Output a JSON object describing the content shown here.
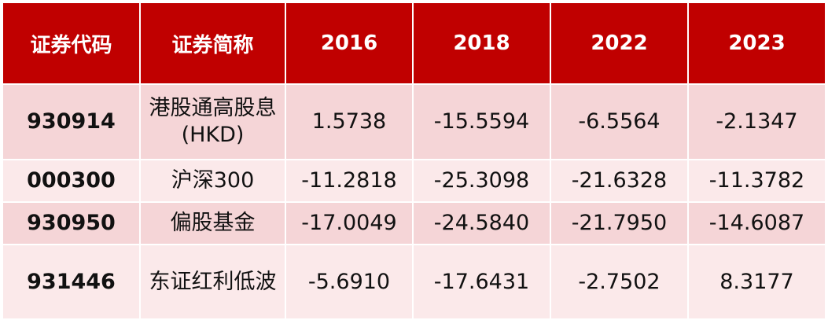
{
  "table": {
    "headers": [
      "证券代码",
      "证券简称",
      "2016",
      "2018",
      "2022",
      "2023"
    ],
    "rows": [
      {
        "code": "930914",
        "name": "港股通高股息(HKD)",
        "values": [
          "1.5738",
          "-15.5594",
          "-6.5564",
          "-2.1347"
        ]
      },
      {
        "code": "000300",
        "name": "沪深300",
        "values": [
          "-11.2818",
          "-25.3098",
          "-21.6328",
          "-11.3782"
        ]
      },
      {
        "code": "930950",
        "name": "偏股基金",
        "values": [
          "-17.0049",
          "-24.5840",
          "-21.7950",
          "-14.6087"
        ]
      },
      {
        "code": "931446",
        "name": "东证红利低波",
        "values": [
          "-5.6910",
          "-17.6431",
          "-2.7502",
          "8.3177"
        ]
      }
    ]
  },
  "colors": {
    "header_bg": "#c00000",
    "header_text": "#ffffff",
    "row_odd_bg": "#f5d5d7",
    "row_even_bg": "#fbe9ea"
  }
}
